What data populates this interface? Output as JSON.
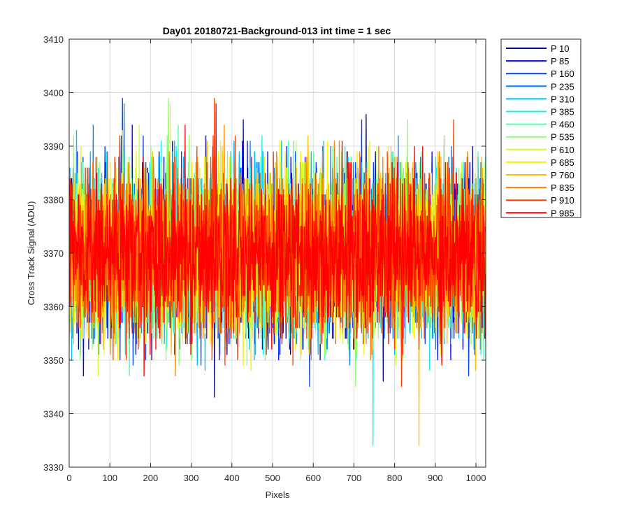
{
  "chart_data": {
    "type": "line",
    "title": "Day01 20180721-Background-013 int time = 1 sec",
    "xlabel": "Pixels",
    "ylabel": "Cross Track Signal (ADU)",
    "xlim": [
      0,
      1024
    ],
    "ylim": [
      3330,
      3410
    ],
    "xticks": [
      0,
      100,
      200,
      300,
      400,
      500,
      600,
      700,
      800,
      900,
      1000
    ],
    "yticks": [
      3330,
      3340,
      3350,
      3360,
      3370,
      3380,
      3390,
      3400,
      3410
    ],
    "grid": true,
    "legend_position": "outside-top-right",
    "noise_model": {
      "num_points": 1024,
      "mean": 3370,
      "std": 7.5,
      "min": 3333,
      "max": 3401
    },
    "series": [
      {
        "name": "P 10",
        "color": "#00008f"
      },
      {
        "name": "P 85",
        "color": "#0000ff"
      },
      {
        "name": "P 160",
        "color": "#0040ff"
      },
      {
        "name": "P 235",
        "color": "#0080ff"
      },
      {
        "name": "P 310",
        "color": "#00bfff"
      },
      {
        "name": "P 385",
        "color": "#10f0f0"
      },
      {
        "name": "P 460",
        "color": "#50ffb0"
      },
      {
        "name": "P 535",
        "color": "#90ff70"
      },
      {
        "name": "P 610",
        "color": "#d0ff30"
      },
      {
        "name": "P 685",
        "color": "#ffee00"
      },
      {
        "name": "P 760",
        "color": "#ffbf00"
      },
      {
        "name": "P 835",
        "color": "#ff8000"
      },
      {
        "name": "P 910",
        "color": "#ff4000"
      },
      {
        "name": "P 985",
        "color": "#ff0000"
      }
    ]
  }
}
